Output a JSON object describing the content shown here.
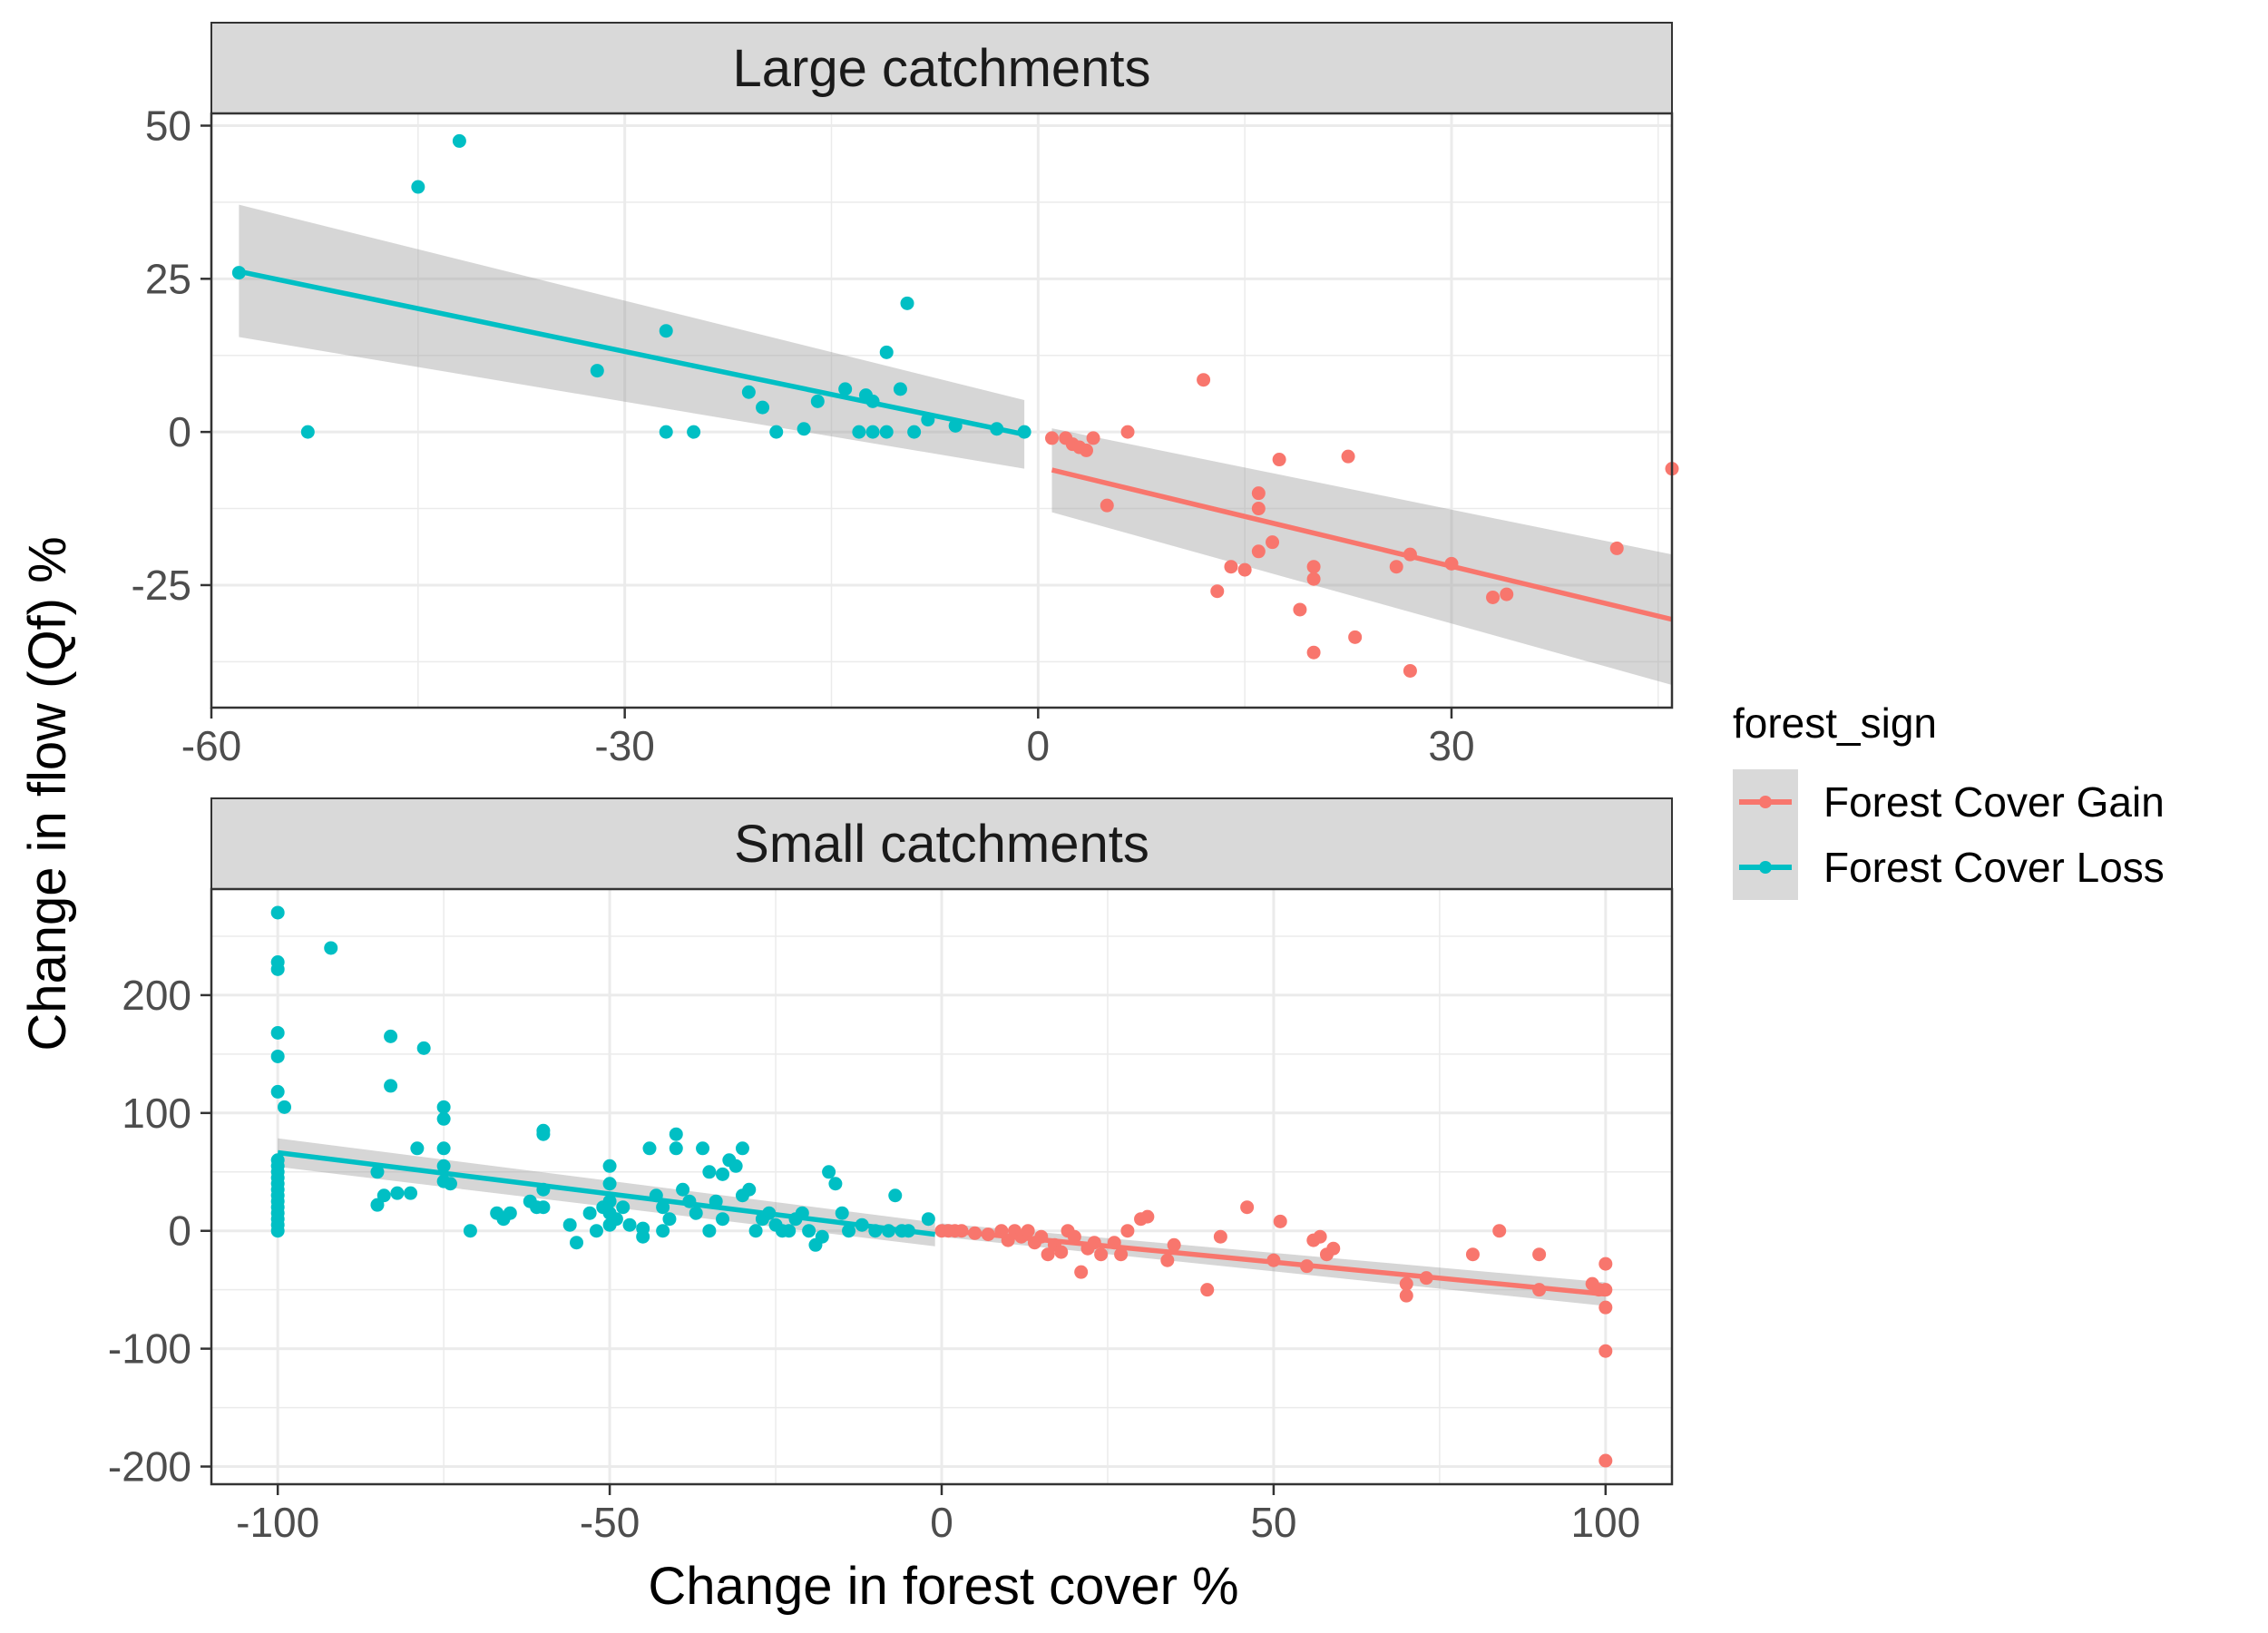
{
  "figure": {
    "ylabel": "Change in flow (Qf) %",
    "xlabel": "Change in forest cover %"
  },
  "legend": {
    "title": "forest_sign",
    "items": [
      {
        "label": "Forest Cover Gain",
        "color": "#F8766D"
      },
      {
        "label": "Forest Cover Loss",
        "color": "#00BFC4"
      }
    ]
  },
  "chart_data": [
    {
      "type": "scatter",
      "title": "Large catchments",
      "xlabel": "Change in forest cover %",
      "ylabel": "Change in flow (Qf) %",
      "xlim": [
        -60,
        46
      ],
      "ylim": [
        -45,
        52
      ],
      "x_ticks": [
        -60,
        -30,
        0,
        30
      ],
      "x_tick_labels": [
        "-60",
        "-30",
        "0",
        "30"
      ],
      "y_ticks": [
        -25,
        0,
        25,
        50
      ],
      "y_tick_labels": [
        "-25",
        "0",
        "25",
        "50"
      ],
      "grid": true,
      "legend": "right",
      "series": [
        {
          "name": "Forest Cover Gain",
          "color": "#F8766D",
          "points": [
            [
              1,
              -1
            ],
            [
              2,
              -1
            ],
            [
              2.5,
              -2
            ],
            [
              3,
              -2.5
            ],
            [
              3.5,
              -3
            ],
            [
              4,
              -1
            ],
            [
              5,
              -12
            ],
            [
              6.5,
              0
            ],
            [
              12,
              8.5
            ],
            [
              13,
              -26
            ],
            [
              14,
              -22
            ],
            [
              15,
              -22.5
            ],
            [
              16,
              -10
            ],
            [
              16,
              -12.5
            ],
            [
              16,
              -19.5
            ],
            [
              17,
              -18
            ],
            [
              17.5,
              -4.5
            ],
            [
              19,
              -29
            ],
            [
              20,
              -22
            ],
            [
              20,
              -24
            ],
            [
              20,
              -36
            ],
            [
              22.5,
              -4
            ],
            [
              23,
              -33.5
            ],
            [
              26,
              -22
            ],
            [
              27,
              -20
            ],
            [
              27,
              -39
            ],
            [
              30,
              -21.5
            ],
            [
              33,
              -27
            ],
            [
              34,
              -26.5
            ],
            [
              42,
              -19
            ],
            [
              46,
              -6
            ]
          ],
          "fit": {
            "x": [
              1,
              46
            ],
            "y": [
              -6.2,
              -30.6
            ],
            "ci_lower": [
              -13.1,
              -41.3
            ],
            "ci_upper": [
              0.6,
              -20.0
            ]
          }
        },
        {
          "name": "Forest Cover Loss",
          "color": "#00BFC4",
          "points": [
            [
              -58,
              26
            ],
            [
              -53,
              0
            ],
            [
              -45,
              40
            ],
            [
              -42,
              47.5
            ],
            [
              -32,
              10
            ],
            [
              -27,
              16.5
            ],
            [
              -27,
              0
            ],
            [
              -25,
              0
            ],
            [
              -21,
              6.5
            ],
            [
              -20,
              4
            ],
            [
              -19,
              0
            ],
            [
              -17,
              0.5
            ],
            [
              -16,
              5
            ],
            [
              -14,
              7
            ],
            [
              -13,
              0
            ],
            [
              -12.5,
              6
            ],
            [
              -12,
              5
            ],
            [
              -12,
              0
            ],
            [
              -11,
              13
            ],
            [
              -11,
              0
            ],
            [
              -10,
              7
            ],
            [
              -9.5,
              21
            ],
            [
              -9,
              0
            ],
            [
              -8,
              2
            ],
            [
              -6,
              1
            ],
            [
              -3,
              0.5
            ],
            [
              -1,
              0
            ]
          ],
          "fit": {
            "x": [
              -58,
              -1
            ],
            "y": [
              26.2,
              -0.4
            ],
            "ci_lower": [
              15.5,
              -6.0
            ],
            "ci_upper": [
              37.1,
              5.2
            ]
          }
        }
      ]
    },
    {
      "type": "scatter",
      "title": "Small catchments",
      "xlabel": "Change in forest cover %",
      "ylabel": "Change in flow (Qf) %",
      "xlim": [
        -110,
        110
      ],
      "ylim": [
        -215,
        290
      ],
      "x_ticks": [
        -100,
        -50,
        0,
        50,
        100
      ],
      "x_tick_labels": [
        "-100",
        "-50",
        "0",
        "50",
        "100"
      ],
      "y_ticks": [
        -200,
        -100,
        0,
        100,
        200
      ],
      "y_tick_labels": [
        "-200",
        "-100",
        "0",
        "100",
        "200"
      ],
      "grid": true,
      "legend": "right",
      "series": [
        {
          "name": "Forest Cover Gain",
          "color": "#F8766D",
          "points": [
            [
              0,
              0
            ],
            [
              1,
              0
            ],
            [
              2,
              0
            ],
            [
              3,
              0
            ],
            [
              5,
              -2
            ],
            [
              7,
              -3
            ],
            [
              9,
              0
            ],
            [
              10,
              -8
            ],
            [
              11,
              0
            ],
            [
              12,
              -5
            ],
            [
              13,
              0
            ],
            [
              14,
              -10
            ],
            [
              15,
              -5
            ],
            [
              16,
              -20
            ],
            [
              17,
              -12
            ],
            [
              18,
              -18
            ],
            [
              19,
              0
            ],
            [
              20,
              -5
            ],
            [
              21,
              -35
            ],
            [
              22,
              -15
            ],
            [
              23,
              -10
            ],
            [
              24,
              -20
            ],
            [
              26,
              -10
            ],
            [
              27,
              -20
            ],
            [
              28,
              0
            ],
            [
              30,
              10
            ],
            [
              31,
              12
            ],
            [
              34,
              -25
            ],
            [
              35,
              -12
            ],
            [
              40,
              -50
            ],
            [
              42,
              -5
            ],
            [
              46,
              20
            ],
            [
              50,
              -25
            ],
            [
              51,
              8
            ],
            [
              55,
              -30
            ],
            [
              56,
              -8
            ],
            [
              57,
              -5
            ],
            [
              58,
              -20
            ],
            [
              59,
              -15
            ],
            [
              70,
              -45
            ],
            [
              70,
              -55
            ],
            [
              73,
              -40
            ],
            [
              80,
              -20
            ],
            [
              84,
              0
            ],
            [
              90,
              -20
            ],
            [
              90,
              -50
            ],
            [
              98,
              -45
            ],
            [
              99,
              -50
            ],
            [
              100,
              -28
            ],
            [
              100,
              -50
            ],
            [
              100,
              -65
            ],
            [
              100,
              -102
            ],
            [
              100,
              -195
            ]
          ],
          "fit": {
            "x": [
              0,
              100
            ],
            "y": [
              0.6,
              -53.7
            ],
            "ci_lower": [
              -5.1,
              -63.7
            ],
            "ci_upper": [
              6.3,
              -43.7
            ]
          }
        },
        {
          "name": "Forest Cover Loss",
          "color": "#00BFC4",
          "points": [
            [
              -100,
              270
            ],
            [
              -100,
              228
            ],
            [
              -100,
              222
            ],
            [
              -100,
              168
            ],
            [
              -100,
              148
            ],
            [
              -100,
              118
            ],
            [
              -100,
              60
            ],
            [
              -100,
              55
            ],
            [
              -100,
              50
            ],
            [
              -100,
              45
            ],
            [
              -100,
              40
            ],
            [
              -100,
              35
            ],
            [
              -100,
              30
            ],
            [
              -100,
              25
            ],
            [
              -100,
              20
            ],
            [
              -100,
              15
            ],
            [
              -100,
              10
            ],
            [
              -100,
              5
            ],
            [
              -100,
              0
            ],
            [
              -99,
              105
            ],
            [
              -92,
              240
            ],
            [
              -85,
              50
            ],
            [
              -85,
              22
            ],
            [
              -84,
              30
            ],
            [
              -83,
              165
            ],
            [
              -83,
              123
            ],
            [
              -82,
              32
            ],
            [
              -80,
              32
            ],
            [
              -79,
              70
            ],
            [
              -78,
              155
            ],
            [
              -75,
              105
            ],
            [
              -75,
              95
            ],
            [
              -75,
              70
            ],
            [
              -75,
              55
            ],
            [
              -75,
              42
            ],
            [
              -74,
              40
            ],
            [
              -71,
              0
            ],
            [
              -67,
              15
            ],
            [
              -66,
              10
            ],
            [
              -65,
              15
            ],
            [
              -62,
              25
            ],
            [
              -61,
              20
            ],
            [
              -60,
              85
            ],
            [
              -60,
              82
            ],
            [
              -60,
              35
            ],
            [
              -60,
              20
            ],
            [
              -56,
              5
            ],
            [
              -55,
              -10
            ],
            [
              -53,
              15
            ],
            [
              -52,
              0
            ],
            [
              -51,
              20
            ],
            [
              -50,
              55
            ],
            [
              -50,
              40
            ],
            [
              -50,
              25
            ],
            [
              -50,
              15
            ],
            [
              -50,
              5
            ],
            [
              -49,
              10
            ],
            [
              -48,
              20
            ],
            [
              -47,
              5
            ],
            [
              -45,
              2
            ],
            [
              -45,
              -5
            ],
            [
              -44,
              70
            ],
            [
              -43,
              30
            ],
            [
              -42,
              20
            ],
            [
              -42,
              0
            ],
            [
              -41,
              10
            ],
            [
              -40,
              82
            ],
            [
              -40,
              70
            ],
            [
              -39,
              35
            ],
            [
              -38,
              25
            ],
            [
              -37,
              15
            ],
            [
              -36,
              70
            ],
            [
              -35,
              50
            ],
            [
              -35,
              0
            ],
            [
              -34,
              25
            ],
            [
              -33,
              48
            ],
            [
              -33,
              10
            ],
            [
              -32,
              60
            ],
            [
              -31,
              55
            ],
            [
              -30,
              70
            ],
            [
              -30,
              30
            ],
            [
              -29,
              35
            ],
            [
              -28,
              0
            ],
            [
              -27,
              10
            ],
            [
              -26,
              15
            ],
            [
              -25,
              5
            ],
            [
              -24,
              0
            ],
            [
              -23,
              0
            ],
            [
              -22,
              10
            ],
            [
              -21,
              15
            ],
            [
              -20,
              0
            ],
            [
              -19,
              -12
            ],
            [
              -18,
              -5
            ],
            [
              -17,
              50
            ],
            [
              -16,
              40
            ],
            [
              -15,
              15
            ],
            [
              -14,
              0
            ],
            [
              -12,
              5
            ],
            [
              -10,
              0
            ],
            [
              -8,
              0
            ],
            [
              -7,
              30
            ],
            [
              -6,
              0
            ],
            [
              -5,
              0
            ],
            [
              -2,
              10
            ]
          ],
          "fit": {
            "x": [
              -100,
              -1
            ],
            "y": [
              66.4,
              -3.0
            ],
            "ci_lower": [
              54.3,
              -13.1
            ],
            "ci_upper": [
              78.5,
              7.1
            ]
          }
        }
      ]
    }
  ]
}
